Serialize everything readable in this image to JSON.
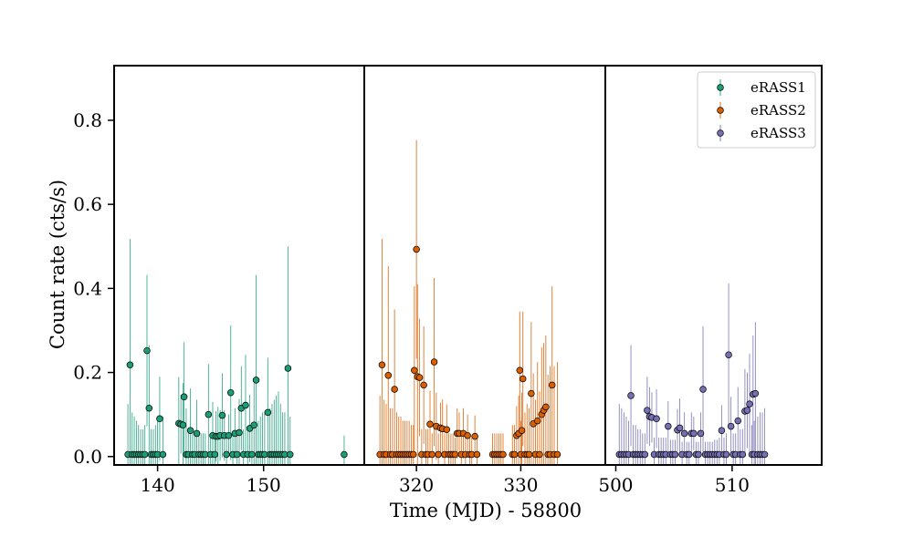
{
  "chart_data": {
    "type": "scatter",
    "ylabel": "Count rate (cts/s)",
    "xlabel": "Time (MJD) - 58800",
    "ylim": [
      -0.02,
      0.93
    ],
    "yticks": [
      0.0,
      0.2,
      0.4,
      0.6,
      0.8
    ],
    "ytick_labels": [
      "0.0",
      "0.2",
      "0.4",
      "0.6",
      "0.8"
    ],
    "legend_position": "top-right",
    "panels": [
      {
        "name": "eRASS1",
        "color": "#1b9e77",
        "xlim": [
          135.9,
          159.5
        ],
        "xticks": [
          140,
          150
        ],
        "xtick_labels": [
          "140",
          "150"
        ],
        "points": [
          [
            137.2,
            0.005,
            0.12
          ],
          [
            137.4,
            0.218,
            0.3
          ],
          [
            137.6,
            0.005,
            0.1
          ],
          [
            137.8,
            0.005,
            0.09
          ],
          [
            138.0,
            0.005,
            0.08
          ],
          [
            138.2,
            0.005,
            0.07
          ],
          [
            138.4,
            0.005,
            0.06
          ],
          [
            138.6,
            0.005,
            0.06
          ],
          [
            138.8,
            0.005,
            0.07
          ],
          [
            139.0,
            0.252,
            0.18
          ],
          [
            139.2,
            0.115,
            0.15
          ],
          [
            139.4,
            0.005,
            0.06
          ],
          [
            139.6,
            0.005,
            0.06
          ],
          [
            139.8,
            0.005,
            0.07
          ],
          [
            140.0,
            0.005,
            0.08
          ],
          [
            140.2,
            0.09,
            0.1
          ],
          [
            140.5,
            0.005,
            0.09
          ],
          [
            142.0,
            0.079,
            0.11
          ],
          [
            142.2,
            0.077,
            0.07
          ],
          [
            142.4,
            0.075,
            0.1
          ],
          [
            142.5,
            0.142,
            0.13
          ],
          [
            142.7,
            0.005,
            0.11
          ],
          [
            142.9,
            0.005,
            0.06
          ],
          [
            143.1,
            0.062,
            0.1
          ],
          [
            143.3,
            0.005,
            0.05
          ],
          [
            143.5,
            0.005,
            0.05
          ],
          [
            143.7,
            0.055,
            0.08
          ],
          [
            143.9,
            0.005,
            0.05
          ],
          [
            144.1,
            0.005,
            0.05
          ],
          [
            144.3,
            0.005,
            0.05
          ],
          [
            144.5,
            0.005,
            0.05
          ],
          [
            144.8,
            0.1,
            0.12
          ],
          [
            145.0,
            0.005,
            0.05
          ],
          [
            145.2,
            0.05,
            0.08
          ],
          [
            145.4,
            0.005,
            0.05
          ],
          [
            145.5,
            0.048,
            0.06
          ],
          [
            145.7,
            0.048,
            0.07
          ],
          [
            145.9,
            0.05,
            0.06
          ],
          [
            146.1,
            0.098,
            0.1
          ],
          [
            146.3,
            0.05,
            0.06
          ],
          [
            146.5,
            0.005,
            0.04
          ],
          [
            146.7,
            0.05,
            0.05
          ],
          [
            146.9,
            0.152,
            0.16
          ],
          [
            147.1,
            0.005,
            0.05
          ],
          [
            147.3,
            0.055,
            0.06
          ],
          [
            147.5,
            0.005,
            0.05
          ],
          [
            147.7,
            0.057,
            0.08
          ],
          [
            147.9,
            0.115,
            0.1
          ],
          [
            148.1,
            0.005,
            0.06
          ],
          [
            148.3,
            0.122,
            0.12
          ],
          [
            148.5,
            0.005,
            0.06
          ],
          [
            148.7,
            0.067,
            0.08
          ],
          [
            148.9,
            0.005,
            0.07
          ],
          [
            149.1,
            0.075,
            0.1
          ],
          [
            149.3,
            0.182,
            0.25
          ],
          [
            149.5,
            0.005,
            0.08
          ],
          [
            149.7,
            0.005,
            0.09
          ],
          [
            149.9,
            0.005,
            0.1
          ],
          [
            150.1,
            0.005,
            0.1
          ],
          [
            150.4,
            0.105,
            0.13
          ],
          [
            150.6,
            0.005,
            0.11
          ],
          [
            150.8,
            0.005,
            0.12
          ],
          [
            151.0,
            0.005,
            0.13
          ],
          [
            151.2,
            0.005,
            0.14
          ],
          [
            151.4,
            0.005,
            0.15
          ],
          [
            151.6,
            0.005,
            0.12
          ],
          [
            151.8,
            0.005,
            0.1
          ],
          [
            152.0,
            0.005,
            0.1
          ],
          [
            152.3,
            0.21,
            0.29
          ],
          [
            152.5,
            0.005,
            0.09
          ],
          [
            157.6,
            0.005,
            0.045
          ]
        ]
      },
      {
        "name": "eRASS2",
        "color": "#d95f02",
        "xlim": [
          315.0,
          338.1
        ],
        "xticks": [
          320,
          330
        ],
        "xtick_labels": [
          "320",
          "330"
        ],
        "points": [
          [
            316.5,
            0.005,
            0.14
          ],
          [
            316.7,
            0.218,
            0.3
          ],
          [
            316.9,
            0.005,
            0.13
          ],
          [
            317.1,
            0.005,
            0.12
          ],
          [
            317.3,
            0.193,
            0.26
          ],
          [
            317.5,
            0.005,
            0.11
          ],
          [
            317.7,
            0.005,
            0.11
          ],
          [
            317.9,
            0.16,
            0.19
          ],
          [
            318.1,
            0.005,
            0.1
          ],
          [
            318.3,
            0.005,
            0.09
          ],
          [
            318.5,
            0.005,
            0.09
          ],
          [
            318.7,
            0.005,
            0.08
          ],
          [
            318.9,
            0.005,
            0.08
          ],
          [
            319.1,
            0.005,
            0.08
          ],
          [
            319.3,
            0.005,
            0.08
          ],
          [
            319.5,
            0.005,
            0.07
          ],
          [
            319.7,
            0.005,
            0.07
          ],
          [
            319.8,
            0.205,
            0.2
          ],
          [
            320.0,
            0.493,
            0.26
          ],
          [
            320.1,
            0.19,
            0.22
          ],
          [
            320.3,
            0.188,
            0.14
          ],
          [
            320.5,
            0.005,
            0.06
          ],
          [
            320.7,
            0.17,
            0.14
          ],
          [
            320.9,
            0.005,
            0.06
          ],
          [
            321.1,
            0.005,
            0.06
          ],
          [
            321.3,
            0.077,
            0.08
          ],
          [
            321.5,
            0.005,
            0.05
          ],
          [
            321.7,
            0.225,
            0.2
          ],
          [
            321.9,
            0.072,
            0.08
          ],
          [
            322.1,
            0.005,
            0.05
          ],
          [
            322.3,
            0.068,
            0.06
          ],
          [
            322.5,
            0.066,
            0.07
          ],
          [
            322.7,
            0.005,
            0.05
          ],
          [
            322.9,
            0.064,
            0.06
          ],
          [
            323.1,
            0.005,
            0.05
          ],
          [
            323.3,
            0.005,
            0.05
          ],
          [
            323.5,
            0.005,
            0.05
          ],
          [
            323.7,
            0.005,
            0.04
          ],
          [
            323.9,
            0.055,
            0.06
          ],
          [
            324.1,
            0.055,
            0.05
          ],
          [
            324.3,
            0.005,
            0.05
          ],
          [
            324.5,
            0.055,
            0.06
          ],
          [
            324.7,
            0.005,
            0.05
          ],
          [
            324.9,
            0.05,
            0.05
          ],
          [
            325.1,
            0.005,
            0.05
          ],
          [
            325.3,
            0.005,
            0.04
          ],
          [
            325.6,
            0.048,
            0.05
          ],
          [
            325.8,
            0.005,
            0.05
          ],
          [
            327.3,
            0.005,
            0.05
          ],
          [
            327.5,
            0.005,
            0.05
          ],
          [
            327.7,
            0.005,
            0.05
          ],
          [
            327.9,
            0.005,
            0.05
          ],
          [
            328.1,
            0.005,
            0.05
          ],
          [
            328.3,
            0.005,
            0.05
          ],
          [
            329.2,
            0.005,
            0.07
          ],
          [
            329.4,
            0.005,
            0.07
          ],
          [
            329.6,
            0.05,
            0.07
          ],
          [
            329.8,
            0.055,
            0.09
          ],
          [
            329.9,
            0.205,
            0.14
          ],
          [
            330.0,
            0.005,
            0.08
          ],
          [
            330.1,
            0.062,
            0.09
          ],
          [
            330.2,
            0.185,
            0.16
          ],
          [
            330.4,
            0.005,
            0.1
          ],
          [
            330.6,
            0.005,
            0.12
          ],
          [
            330.8,
            0.005,
            0.11
          ],
          [
            331.0,
            0.15,
            0.17
          ],
          [
            331.2,
            0.078,
            0.12
          ],
          [
            331.4,
            0.005,
            0.13
          ],
          [
            331.6,
            0.085,
            0.14
          ],
          [
            331.8,
            0.005,
            0.15
          ],
          [
            332.0,
            0.1,
            0.16
          ],
          [
            332.2,
            0.11,
            0.16
          ],
          [
            332.4,
            0.118,
            0.17
          ],
          [
            332.6,
            0.005,
            0.19
          ],
          [
            332.8,
            0.005,
            0.21
          ],
          [
            333.0,
            0.17,
            0.235
          ],
          [
            333.2,
            0.005,
            0.21
          ],
          [
            333.5,
            0.005,
            0.22
          ]
        ]
      },
      {
        "name": "eRASS3",
        "color": "#7570b3",
        "xlim": [
          499.1,
          517.7
        ],
        "xticks": [
          500,
          510
        ],
        "xtick_labels": [
          "500",
          "510"
        ],
        "points": [
          [
            500.3,
            0.005,
            0.12
          ],
          [
            500.5,
            0.005,
            0.11
          ],
          [
            500.7,
            0.005,
            0.1
          ],
          [
            500.9,
            0.005,
            0.09
          ],
          [
            501.1,
            0.005,
            0.08
          ],
          [
            501.3,
            0.145,
            0.12
          ],
          [
            501.5,
            0.005,
            0.07
          ],
          [
            501.7,
            0.005,
            0.07
          ],
          [
            501.9,
            0.005,
            0.06
          ],
          [
            502.1,
            0.005,
            0.06
          ],
          [
            502.3,
            0.005,
            0.05
          ],
          [
            502.5,
            0.005,
            0.05
          ],
          [
            502.7,
            0.11,
            0.08
          ],
          [
            502.9,
            0.095,
            0.07
          ],
          [
            503.1,
            0.093,
            0.06
          ],
          [
            503.3,
            0.005,
            0.04
          ],
          [
            503.5,
            0.09,
            0.07
          ],
          [
            503.7,
            0.005,
            0.04
          ],
          [
            503.9,
            0.005,
            0.04
          ],
          [
            504.1,
            0.005,
            0.04
          ],
          [
            504.3,
            0.005,
            0.04
          ],
          [
            504.5,
            0.072,
            0.06
          ],
          [
            504.7,
            0.005,
            0.035
          ],
          [
            504.9,
            0.005,
            0.035
          ],
          [
            505.1,
            0.005,
            0.035
          ],
          [
            505.3,
            0.063,
            0.05
          ],
          [
            505.5,
            0.068,
            0.07
          ],
          [
            505.7,
            0.005,
            0.03
          ],
          [
            505.9,
            0.055,
            0.05
          ],
          [
            506.1,
            0.005,
            0.03
          ],
          [
            506.3,
            0.005,
            0.03
          ],
          [
            506.5,
            0.055,
            0.05
          ],
          [
            506.7,
            0.055,
            0.04
          ],
          [
            506.9,
            0.005,
            0.03
          ],
          [
            507.1,
            0.005,
            0.03
          ],
          [
            507.3,
            0.055,
            0.05
          ],
          [
            507.5,
            0.16,
            0.15
          ],
          [
            507.7,
            0.005,
            0.03
          ],
          [
            507.9,
            0.005,
            0.03
          ],
          [
            508.1,
            0.005,
            0.03
          ],
          [
            508.3,
            0.005,
            0.03
          ],
          [
            508.5,
            0.005,
            0.035
          ],
          [
            508.7,
            0.005,
            0.035
          ],
          [
            508.9,
            0.005,
            0.04
          ],
          [
            509.1,
            0.062,
            0.06
          ],
          [
            509.3,
            0.005,
            0.04
          ],
          [
            509.5,
            0.005,
            0.05
          ],
          [
            509.7,
            0.242,
            0.17
          ],
          [
            509.9,
            0.072,
            0.07
          ],
          [
            510.1,
            0.005,
            0.05
          ],
          [
            510.3,
            0.005,
            0.05
          ],
          [
            510.5,
            0.085,
            0.08
          ],
          [
            510.7,
            0.005,
            0.06
          ],
          [
            510.9,
            0.005,
            0.06
          ],
          [
            511.1,
            0.108,
            0.1
          ],
          [
            511.3,
            0.11,
            0.09
          ],
          [
            511.5,
            0.125,
            0.12
          ],
          [
            511.7,
            0.005,
            0.07
          ],
          [
            511.8,
            0.148,
            0.14
          ],
          [
            511.9,
            0.005,
            0.08
          ],
          [
            512.0,
            0.15,
            0.17
          ],
          [
            512.2,
            0.005,
            0.09
          ],
          [
            512.4,
            0.005,
            0.1
          ],
          [
            512.6,
            0.005,
            0.1
          ],
          [
            512.8,
            0.005,
            0.11
          ]
        ]
      }
    ]
  }
}
